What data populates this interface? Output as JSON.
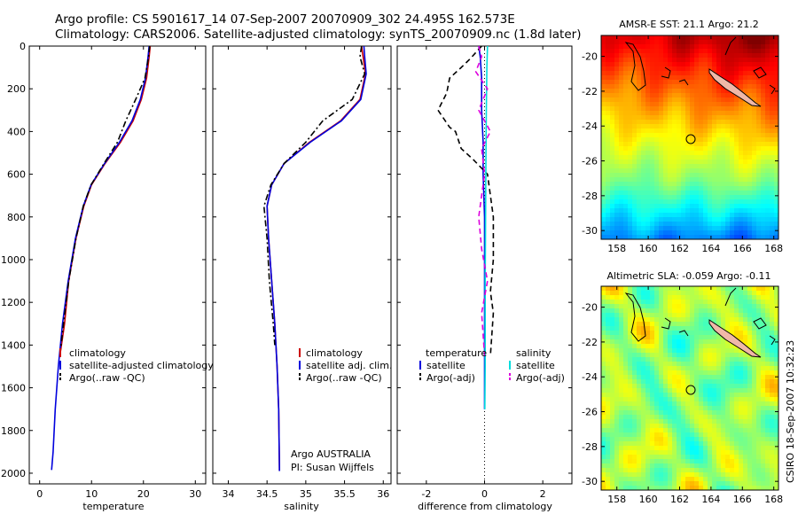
{
  "header": {
    "title_line1": "Argo profile: CS 5901617_14 07-Sep-2007 20070909_302 24.495S 162.573E",
    "title_line2": "Climatology: CARS2006. Satellite-adjusted climatology: synTS_20070909.nc (1.8d later)"
  },
  "side_label": "CSIRO 18-Sep-2007 10:32:23",
  "chart_data": [
    {
      "type": "line",
      "xlabel": "temperature",
      "xlim": [
        -2,
        32
      ],
      "ylim": [
        2050,
        0
      ],
      "xticks": [
        "0",
        "10",
        "20",
        "30"
      ],
      "yticks": [
        "0",
        "200",
        "400",
        "600",
        "800",
        "1000",
        "1200",
        "1400",
        "1600",
        "1800",
        "2000"
      ],
      "legend": [
        "climatology",
        "satellite-adjusted climatology",
        "Argo(..raw -QC)"
      ],
      "legend_position": "lower-right",
      "series": [
        {
          "name": "climatology",
          "color": "#cc0000",
          "style": "solid",
          "x": [
            21.3,
            21.1,
            20.6,
            19.6,
            18.0,
            15.6,
            12.6,
            10.0,
            8.5,
            7.0,
            5.6,
            4.8,
            4.2,
            3.9
          ],
          "y": [
            0,
            50,
            150,
            250,
            350,
            450,
            550,
            650,
            750,
            900,
            1100,
            1300,
            1400,
            1450
          ]
        },
        {
          "name": "satellite-adjusted climatology",
          "color": "#0000dd",
          "style": "solid",
          "x": [
            21.1,
            20.9,
            20.4,
            19.4,
            17.8,
            15.4,
            12.5,
            9.9,
            8.4,
            6.9,
            5.5,
            4.4,
            3.6,
            3.0,
            2.6,
            2.3
          ],
          "y": [
            0,
            50,
            150,
            250,
            350,
            450,
            550,
            650,
            750,
            900,
            1100,
            1300,
            1500,
            1700,
            1900,
            1985
          ]
        },
        {
          "name": "Argo(..raw -QC)",
          "color": "#000000",
          "style": "dashdot",
          "x": [
            21.2,
            21.0,
            20.3,
            18.5,
            16.6,
            15.0,
            12.4,
            9.9,
            8.4,
            7.0,
            5.6,
            4.6,
            3.9
          ],
          "y": [
            0,
            50,
            150,
            250,
            350,
            450,
            550,
            650,
            750,
            900,
            1100,
            1300,
            1450
          ]
        }
      ],
      "annotations": []
    },
    {
      "type": "line",
      "xlabel": "salinity",
      "xlim": [
        33.8,
        36.1
      ],
      "ylim": [
        2050,
        0
      ],
      "xticks": [
        "34",
        "34.5",
        "35",
        "35.5",
        "36"
      ],
      "legend": [
        "climatology",
        "satellite adj. clim.",
        "Argo(..raw -QC)"
      ],
      "legend_position": "lower-right",
      "series": [
        {
          "name": "climatology",
          "color": "#cc0000",
          "style": "solid",
          "x": [
            35.72,
            35.74,
            35.77,
            35.7,
            35.45,
            35.05,
            34.72,
            34.56,
            34.5,
            34.52,
            34.56,
            34.6,
            34.63,
            34.65,
            34.66
          ],
          "y": [
            0,
            50,
            130,
            250,
            350,
            450,
            550,
            650,
            750,
            900,
            1100,
            1300,
            1500,
            1700,
            1990
          ]
        },
        {
          "name": "satellite adj. clim.",
          "color": "#0000dd",
          "style": "solid",
          "x": [
            35.75,
            35.76,
            35.78,
            35.71,
            35.46,
            35.06,
            34.72,
            34.56,
            34.5,
            34.52,
            34.56,
            34.6,
            34.63,
            34.65,
            34.66
          ],
          "y": [
            0,
            50,
            130,
            250,
            350,
            450,
            550,
            650,
            750,
            900,
            1100,
            1300,
            1500,
            1700,
            1990
          ]
        },
        {
          "name": "Argo(..raw -QC)",
          "color": "#000000",
          "style": "dashdot",
          "x": [
            35.72,
            35.7,
            35.76,
            35.6,
            35.22,
            35.0,
            34.72,
            34.55,
            34.46,
            34.5,
            34.53,
            34.58,
            34.6
          ],
          "y": [
            0,
            50,
            130,
            250,
            350,
            450,
            550,
            650,
            750,
            900,
            1100,
            1300,
            1400
          ]
        }
      ],
      "annotations": [
        "Argo AUSTRALIA",
        "PI: Susan Wijffels"
      ]
    },
    {
      "type": "line",
      "xlabel": "difference from climatology",
      "xlim": [
        -3,
        3
      ],
      "ylim": [
        2050,
        0
      ],
      "xticks": [
        "-2",
        "0",
        "2"
      ],
      "legend_groups": [
        {
          "title": "temperature",
          "items": [
            "satellite",
            "Argo(-adj)"
          ]
        },
        {
          "title": "salinity",
          "items": [
            "satellite",
            "Argo(-adj)"
          ]
        }
      ],
      "series": [
        {
          "name": "temperature satellite",
          "color": "#0000dd",
          "style": "solid",
          "x": [
            -0.2,
            -0.15,
            -0.1,
            -0.1,
            -0.05,
            -0.05,
            0,
            0,
            0,
            0
          ],
          "y": [
            0,
            50,
            150,
            300,
            450,
            600,
            800,
            1200,
            1600,
            1700
          ]
        },
        {
          "name": "temperature Argo(-adj)",
          "color": "#000000",
          "style": "dashed",
          "x": [
            -0.1,
            -0.5,
            -0.8,
            -1.2,
            -1.3,
            -1.6,
            -1.4,
            -1.2,
            -1.0,
            -0.8,
            -0.4,
            0.1,
            0.2,
            0.3,
            0.3,
            0.2,
            0.3,
            0.2
          ],
          "y": [
            0,
            60,
            100,
            150,
            220,
            300,
            340,
            380,
            400,
            480,
            530,
            600,
            700,
            800,
            1000,
            1150,
            1250,
            1450
          ]
        },
        {
          "name": "salinity satellite",
          "color": "#00dddd",
          "style": "solid",
          "x": [
            0.1,
            0.08,
            0.06,
            0.05,
            0.04,
            0.03,
            0.02,
            0.02,
            0.02,
            0.01
          ],
          "y": [
            0,
            100,
            300,
            500,
            700,
            900,
            1100,
            1300,
            1500,
            1700
          ]
        },
        {
          "name": "salinity Argo(-adj)",
          "color": "#dd00dd",
          "style": "dashed",
          "x": [
            -0.2,
            -0.1,
            -0.3,
            0.1,
            -0.2,
            0.2,
            -0.1,
            0.0,
            -0.2,
            -0.1,
            0.1,
            -0.1,
            0.0
          ],
          "y": [
            0,
            50,
            120,
            200,
            300,
            400,
            480,
            600,
            800,
            950,
            1100,
            1250,
            1450
          ]
        }
      ],
      "zero_line": true
    },
    {
      "type": "heatmap",
      "title": "AMSR-E SST: 21.1 Argo: 21.2",
      "xticks": [
        "158",
        "160",
        "162",
        "164",
        "166",
        "168"
      ],
      "yticks": [
        "-20",
        "-22",
        "-24",
        "-26",
        "-28",
        "-30"
      ],
      "xlim": [
        157,
        168.3
      ],
      "ylim": [
        -30.5,
        -18.8
      ],
      "argo_position": [
        162.573,
        -24.495
      ],
      "colormap": "jet"
    },
    {
      "type": "heatmap",
      "title": "Altimetric SLA: -0.059 Argo: -0.11",
      "xticks": [
        "158",
        "160",
        "162",
        "164",
        "166",
        "168"
      ],
      "yticks": [
        "-20",
        "-22",
        "-24",
        "-26",
        "-28",
        "-30"
      ],
      "xlim": [
        157,
        168.3
      ],
      "ylim": [
        -30.5,
        -18.8
      ],
      "argo_position": [
        162.573,
        -24.495
      ],
      "colormap": "jet"
    }
  ]
}
